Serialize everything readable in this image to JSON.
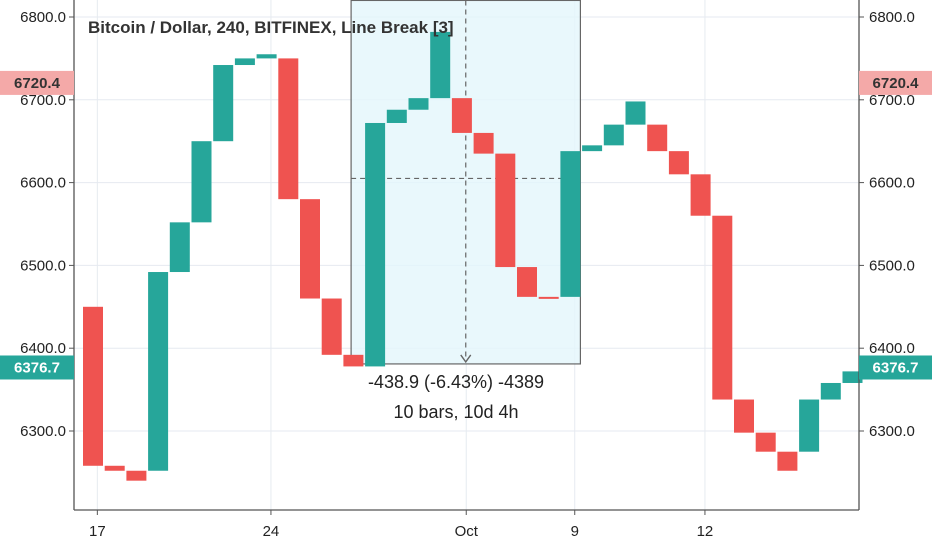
{
  "chart_data": {
    "type": "bar",
    "title": "Bitcoin / Dollar, 240, BITFINEX, Line Break [3]",
    "ylim": [
      6205,
      6820
    ],
    "y_ticks": [
      "6300.0",
      "6400.0",
      "6500.0",
      "6600.0",
      "6700.0",
      "6800.0"
    ],
    "y_tick_values": [
      6300,
      6400,
      6500,
      6600,
      6700,
      6800
    ],
    "x_ticks": [
      {
        "label": "17",
        "index": 0.2
      },
      {
        "label": "24",
        "index": 8.2
      },
      {
        "label": "Oct",
        "index": 17.2
      },
      {
        "label": "9",
        "index": 22.2
      },
      {
        "label": "12",
        "index": 28.2
      }
    ],
    "series": [
      {
        "values": [
          {
            "open": 6450,
            "close": 6258
          },
          {
            "open": 6258,
            "close": 6252
          },
          {
            "open": 6252,
            "close": 6240
          },
          {
            "open": 6252,
            "close": 6492
          },
          {
            "open": 6492,
            "close": 6552
          },
          {
            "open": 6552,
            "close": 6650
          },
          {
            "open": 6650,
            "close": 6742
          },
          {
            "open": 6742,
            "close": 6750
          },
          {
            "open": 6750,
            "close": 6755
          },
          {
            "open": 6750,
            "close": 6580
          },
          {
            "open": 6580,
            "close": 6460
          },
          {
            "open": 6460,
            "close": 6392
          },
          {
            "open": 6392,
            "close": 6378
          },
          {
            "open": 6378,
            "close": 6672
          },
          {
            "open": 6672,
            "close": 6688
          },
          {
            "open": 6688,
            "close": 6702
          },
          {
            "open": 6702,
            "close": 6782
          },
          {
            "open": 6702,
            "close": 6660
          },
          {
            "open": 6660,
            "close": 6635
          },
          {
            "open": 6635,
            "close": 6498
          },
          {
            "open": 6498,
            "close": 6462
          },
          {
            "open": 6462,
            "close": 6460
          },
          {
            "open": 6462,
            "close": 6638
          },
          {
            "open": 6638,
            "close": 6645
          },
          {
            "open": 6645,
            "close": 6670
          },
          {
            "open": 6670,
            "close": 6698
          },
          {
            "open": 6670,
            "close": 6638
          },
          {
            "open": 6638,
            "close": 6610
          },
          {
            "open": 6610,
            "close": 6560
          },
          {
            "open": 6560,
            "close": 6338
          },
          {
            "open": 6338,
            "close": 6298
          },
          {
            "open": 6298,
            "close": 6275
          },
          {
            "open": 6275,
            "close": 6252
          },
          {
            "open": 6275,
            "close": 6338
          },
          {
            "open": 6338,
            "close": 6358
          },
          {
            "open": 6358,
            "close": 6372
          },
          {
            "open": 6372,
            "close": 6376.7
          }
        ]
      }
    ],
    "colors": {
      "up": "#26a69a",
      "down": "#ef5350"
    },
    "price_labels": [
      {
        "text": "6720.4",
        "value": 6720.4,
        "bg": "#f4a9a8",
        "fg": "#333333"
      },
      {
        "text": "6376.7",
        "value": 6376.7,
        "bg": "#26a69a",
        "fg": "#ffffff"
      }
    ],
    "measure": {
      "start_index": 13,
      "end_index": 22,
      "top_value": 6820,
      "bottom_value": 6381,
      "mid_value": 6605,
      "line1": "-438.9 (-6.43%) -4389",
      "line2": "10 bars, 10d 4h"
    },
    "grid": true
  }
}
